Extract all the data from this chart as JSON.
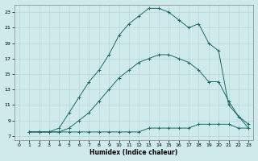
{
  "xlabel": "Humidex (Indice chaleur)",
  "xlim": [
    -0.5,
    23.5
  ],
  "ylim": [
    6.5,
    24
  ],
  "yticks": [
    7,
    9,
    11,
    13,
    15,
    17,
    19,
    21,
    23
  ],
  "xticks": [
    0,
    1,
    2,
    3,
    4,
    5,
    6,
    7,
    8,
    9,
    10,
    11,
    12,
    13,
    14,
    15,
    16,
    17,
    18,
    19,
    20,
    21,
    22,
    23
  ],
  "background_color": "#ceeaea",
  "grid_color": "#b8d4d4",
  "line_color": "#1a6b6b",
  "line1_x": [
    1,
    2,
    3,
    4,
    5,
    6,
    7,
    8,
    9,
    10,
    11,
    12,
    13,
    14,
    15,
    16,
    17,
    18,
    19,
    20,
    21,
    22,
    23
  ],
  "line1_y": [
    7.5,
    7.5,
    7.5,
    7.5,
    7.5,
    7.5,
    7.5,
    7.5,
    7.5,
    7.5,
    7.5,
    7.5,
    8,
    8,
    8,
    8,
    8,
    8.5,
    8.5,
    8.5,
    8.5,
    8,
    8
  ],
  "line2_x": [
    1,
    2,
    3,
    4,
    5,
    6,
    7,
    8,
    9,
    10,
    11,
    12,
    13,
    14,
    15,
    16,
    17,
    18,
    19,
    20,
    21,
    22,
    23
  ],
  "line2_y": [
    7.5,
    7.5,
    7.5,
    7.5,
    8,
    9,
    10,
    11.5,
    13,
    14.5,
    15.5,
    16.5,
    17,
    17.5,
    17.5,
    17,
    16.5,
    15.5,
    14,
    14,
    11.5,
    9.5,
    8.5
  ],
  "line3_x": [
    1,
    2,
    3,
    4,
    5,
    6,
    7,
    8,
    9,
    10,
    11,
    12,
    13,
    14,
    15,
    16,
    17,
    18,
    19,
    20,
    21,
    22,
    23
  ],
  "line3_y": [
    7.5,
    7.5,
    7.5,
    8,
    10,
    12,
    14,
    15.5,
    17.5,
    20,
    21.5,
    22.5,
    23.5,
    23.5,
    23,
    22,
    21,
    21.5,
    19,
    18,
    11,
    9.5,
    8
  ]
}
